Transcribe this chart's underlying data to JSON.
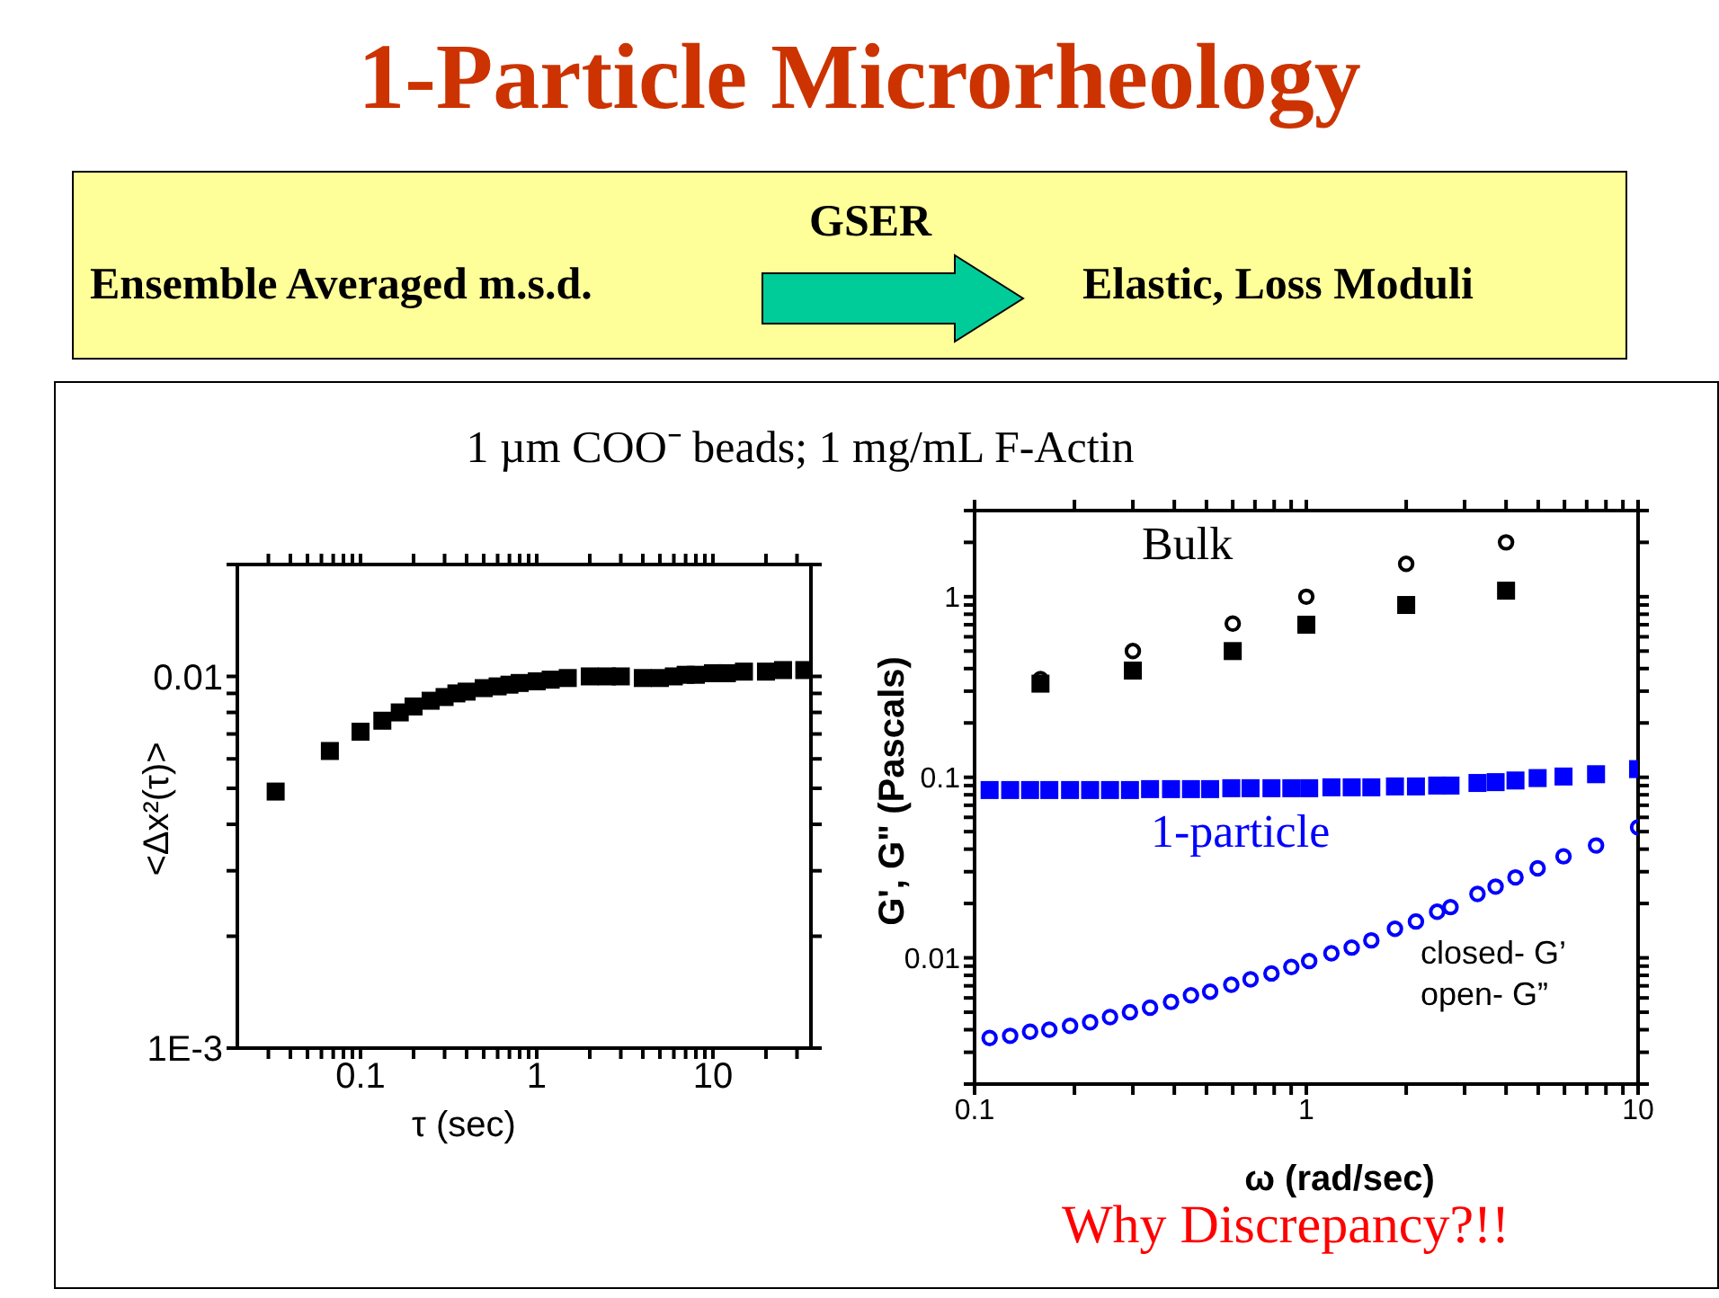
{
  "chart_data": [
    {
      "type": "other",
      "title": "1-Particle Microrheology",
      "subtitle": "1 µm COO⁻ beads; 1 mg/mL F-Actin",
      "annotations": [
        "Ensemble Averaged m.s.d.",
        "GSER",
        "Elastic, Loss Moduli",
        "Why Discrepancy?!!"
      ]
    },
    {
      "type": "scatter",
      "xlabel": "τ (sec)",
      "ylabel": "<Δx²(τ)>",
      "log": "xy",
      "grid": false,
      "legend": false,
      "xlim": [
        0.02,
        36
      ],
      "ylim": [
        0.001,
        0.02
      ],
      "xticks": [
        {
          "value": 0.03,
          "label": null
        },
        {
          "value": 0.04,
          "label": null
        },
        {
          "value": 0.05,
          "label": null
        },
        {
          "value": 0.06,
          "label": null
        },
        {
          "value": 0.07,
          "label": null
        },
        {
          "value": 0.08,
          "label": null
        },
        {
          "value": 0.09,
          "label": null
        },
        0.1,
        {
          "value": 0.2,
          "label": null
        },
        {
          "value": 0.3,
          "label": null
        },
        {
          "value": 0.4,
          "label": null
        },
        {
          "value": 0.5,
          "label": null
        },
        {
          "value": 0.6,
          "label": null
        },
        {
          "value": 0.7,
          "label": null
        },
        {
          "value": 0.8,
          "label": null
        },
        {
          "value": 0.9,
          "label": null
        },
        1,
        {
          "value": 2,
          "label": null
        },
        {
          "value": 3,
          "label": null
        },
        {
          "value": 4,
          "label": null
        },
        {
          "value": 5,
          "label": null
        },
        {
          "value": 6,
          "label": null
        },
        {
          "value": 7,
          "label": null
        },
        {
          "value": 8,
          "label": null
        },
        {
          "value": 9,
          "label": null
        },
        10,
        {
          "value": 20,
          "label": null
        },
        {
          "value": 30,
          "label": null
        }
      ],
      "yticks": [
        {
          "value": 0.001,
          "label": "1E-3"
        },
        {
          "value": 0.002,
          "label": null
        },
        {
          "value": 0.003,
          "label": null
        },
        {
          "value": 0.004,
          "label": null
        },
        {
          "value": 0.005,
          "label": null
        },
        {
          "value": 0.006,
          "label": null
        },
        {
          "value": 0.007,
          "label": null
        },
        {
          "value": 0.008,
          "label": null
        },
        {
          "value": 0.009,
          "label": null
        },
        0.01,
        {
          "value": 0.02,
          "label": null
        }
      ],
      "series": [
        {
          "color": "#000000",
          "marker": "square",
          "x": [
            0.033,
            0.067,
            0.1,
            0.133,
            0.167,
            0.2,
            0.25,
            0.3,
            0.35,
            0.4,
            0.5,
            0.6,
            0.7,
            0.8,
            1,
            1.2,
            1.5,
            2,
            2.5,
            3,
            4,
            5,
            6,
            7,
            8,
            10,
            12,
            15,
            20,
            25,
            33
          ],
          "values": [
            0.0049,
            0.0063,
            0.0071,
            0.0076,
            0.008,
            0.0083,
            0.0086,
            0.0088,
            0.009,
            0.0091,
            0.0093,
            0.0094,
            0.0095,
            0.0096,
            0.0097,
            0.0098,
            0.0099,
            0.01,
            0.01,
            0.01,
            0.0099,
            0.0099,
            0.01,
            0.0101,
            0.0101,
            0.0102,
            0.0102,
            0.0103,
            0.0103,
            0.0104,
            0.0104
          ]
        }
      ]
    },
    {
      "type": "scatter",
      "xlabel": "ω (rad/sec)",
      "ylabel": "G', G\" (Pascals)",
      "log": "xy",
      "grid": false,
      "legend": false,
      "xlim": [
        0.1,
        10
      ],
      "ylim": [
        0.002,
        3
      ],
      "xticks": [
        0.1,
        {
          "value": 0.2,
          "label": null
        },
        {
          "value": 0.3,
          "label": null
        },
        {
          "value": 0.4,
          "label": null
        },
        {
          "value": 0.5,
          "label": null
        },
        {
          "value": 0.6,
          "label": null
        },
        {
          "value": 0.7,
          "label": null
        },
        {
          "value": 0.8,
          "label": null
        },
        {
          "value": 0.9,
          "label": null
        },
        1,
        {
          "value": 2,
          "label": null
        },
        {
          "value": 3,
          "label": null
        },
        {
          "value": 4,
          "label": null
        },
        {
          "value": 5,
          "label": null
        },
        {
          "value": 6,
          "label": null
        },
        {
          "value": 7,
          "label": null
        },
        {
          "value": 8,
          "label": null
        },
        {
          "value": 9,
          "label": null
        },
        10
      ],
      "yticks": [
        {
          "value": 0.002,
          "label": null
        },
        {
          "value": 0.003,
          "label": null
        },
        {
          "value": 0.004,
          "label": null
        },
        {
          "value": 0.005,
          "label": null
        },
        {
          "value": 0.006,
          "label": null
        },
        {
          "value": 0.007,
          "label": null
        },
        {
          "value": 0.008,
          "label": null
        },
        {
          "value": 0.009,
          "label": null
        },
        0.01,
        {
          "value": 0.02,
          "label": null
        },
        {
          "value": 0.03,
          "label": null
        },
        {
          "value": 0.04,
          "label": null
        },
        {
          "value": 0.05,
          "label": null
        },
        {
          "value": 0.06,
          "label": null
        },
        {
          "value": 0.07,
          "label": null
        },
        {
          "value": 0.08,
          "label": null
        },
        {
          "value": 0.09,
          "label": null
        },
        0.1,
        {
          "value": 0.2,
          "label": null
        },
        {
          "value": 0.3,
          "label": null
        },
        {
          "value": 0.4,
          "label": null
        },
        {
          "value": 0.5,
          "label": null
        },
        {
          "value": 0.6,
          "label": null
        },
        {
          "value": 0.7,
          "label": null
        },
        {
          "value": 0.8,
          "label": null
        },
        {
          "value": 0.9,
          "label": null
        },
        1,
        {
          "value": 2,
          "label": null
        },
        {
          "value": 3,
          "label": null
        }
      ],
      "annotations": [
        "Bulk",
        "1-particle",
        "closed- G’",
        "open- G”"
      ],
      "series": [
        {
          "color": "#000000",
          "marker": "square",
          "x": [
            0.158,
            0.3,
            0.6,
            1,
            2,
            4
          ],
          "values": [
            0.33,
            0.39,
            0.5,
            0.7,
            0.9,
            1.08
          ]
        },
        {
          "color": "#000000",
          "marker": "circle",
          "x": [
            0.158,
            0.3,
            0.6,
            1,
            2,
            4
          ],
          "values": [
            0.35,
            0.5,
            0.71,
            1,
            1.52,
            2
          ]
        },
        {
          "color": "#0000ff",
          "marker": "square",
          "x": [
            0.111,
            0.128,
            0.147,
            0.168,
            0.194,
            0.223,
            0.256,
            0.294,
            0.338,
            0.391,
            0.449,
            0.513,
            0.594,
            0.679,
            0.785,
            0.901,
            1.02,
            1.19,
            1.37,
            1.57,
            1.85,
            2.14,
            2.48,
            2.72,
            3.28,
            3.72,
            4.27,
            4.98,
            5.96,
            7.47,
            10
          ],
          "values": [
            0.085,
            0.085,
            0.085,
            0.085,
            0.085,
            0.085,
            0.085,
            0.085,
            0.086,
            0.086,
            0.086,
            0.086,
            0.087,
            0.087,
            0.087,
            0.087,
            0.087,
            0.088,
            0.088,
            0.088,
            0.089,
            0.089,
            0.09,
            0.09,
            0.093,
            0.094,
            0.096,
            0.099,
            0.101,
            0.104,
            0.111
          ]
        },
        {
          "color": "#0000ff",
          "marker": "circle",
          "x": [
            0.111,
            0.128,
            0.147,
            0.168,
            0.194,
            0.223,
            0.256,
            0.294,
            0.338,
            0.391,
            0.449,
            0.513,
            0.594,
            0.679,
            0.785,
            0.901,
            1.02,
            1.19,
            1.37,
            1.57,
            1.85,
            2.14,
            2.48,
            2.72,
            3.28,
            3.72,
            4.27,
            4.98,
            5.96,
            7.47,
            10
          ],
          "values": [
            0.0036,
            0.0037,
            0.0039,
            0.004,
            0.0042,
            0.0044,
            0.0047,
            0.005,
            0.0053,
            0.0057,
            0.0062,
            0.0065,
            0.0071,
            0.0076,
            0.0082,
            0.0089,
            0.0096,
            0.0106,
            0.0114,
            0.0125,
            0.0145,
            0.0159,
            0.018,
            0.0191,
            0.0226,
            0.0248,
            0.0279,
            0.0313,
            0.0365,
            0.0419,
            0.0528
          ]
        }
      ]
    }
  ]
}
